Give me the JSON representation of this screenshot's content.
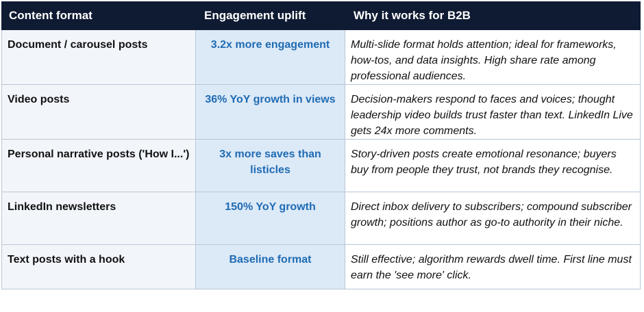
{
  "table": {
    "headers": {
      "format": "Content format",
      "uplift": "Engagement uplift",
      "why": "Why it works for B2B"
    },
    "rows": [
      {
        "format": "Document / carousel posts",
        "uplift": "3.2x more engagement",
        "why": "Multi-slide format holds attention; ideal for frameworks, how-tos, and data insights. High share rate among professional audiences."
      },
      {
        "format": "Video posts",
        "uplift": "36% YoY growth in views",
        "why": "Decision-makers respond to faces and voices; thought leadership video builds trust faster than text. LinkedIn Live gets 24x more comments."
      },
      {
        "format": "Personal narrative posts ('How I...')",
        "uplift": "3x more saves than listicles",
        "why": "Story-driven posts create emotional resonance; buyers buy from people they trust, not brands they recognise."
      },
      {
        "format": "LinkedIn newsletters",
        "uplift": "150% YoY growth",
        "why": "Direct inbox delivery to subscribers; compound subscriber growth; positions author as go-to authority in their niche."
      },
      {
        "format": "Text posts with a hook",
        "uplift": "Baseline format",
        "why": "Still effective; algorithm rewards dwell time. First line must earn the 'see more' click."
      }
    ]
  },
  "colors": {
    "header_bg": "#0f1b33",
    "uplift_text": "#1f6bb3",
    "uplift_bg": "#dce9f7",
    "format_bg": "#f2f6fb"
  }
}
